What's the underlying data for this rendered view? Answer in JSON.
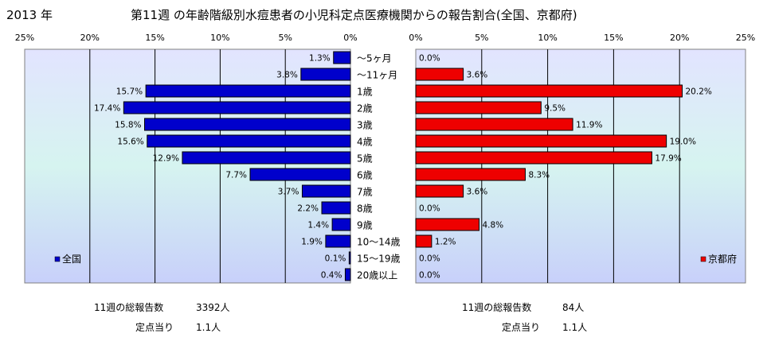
{
  "header": {
    "year": "2013 年",
    "title": "第11週 の年齢階級別水痘患者の小児科定点医療機関からの報告割合(全国、京都府)"
  },
  "chart_data": {
    "type": "bar",
    "orientation": "horizontal",
    "categories": [
      "～5ヶ月",
      "～11ヶ月",
      "1歳",
      "2歳",
      "3歳",
      "4歳",
      "5歳",
      "6歳",
      "7歳",
      "8歳",
      "9歳",
      "10～14歳",
      "15～19歳",
      "20歳以上"
    ],
    "xlim": [
      0,
      25
    ],
    "x_ticks": [
      "0%",
      "5%",
      "10%",
      "15%",
      "20%",
      "25%"
    ],
    "grid": "vertical",
    "series": [
      {
        "name": "全国",
        "color": "#0000cc",
        "side": "left",
        "legend_position": "bottom-left",
        "values": [
          1.3,
          3.8,
          15.7,
          17.4,
          15.8,
          15.6,
          12.9,
          7.7,
          3.7,
          2.2,
          1.4,
          1.9,
          0.1,
          0.4
        ],
        "labels": [
          "1.3%",
          "3.8%",
          "15.7%",
          "17.4%",
          "15.8%",
          "15.6%",
          "12.9%",
          "7.7%",
          "3.7%",
          "2.2%",
          "1.4%",
          "1.9%",
          "0.1%",
          "0.4%"
        ]
      },
      {
        "name": "京都府",
        "color": "#ee0000",
        "side": "right",
        "legend_position": "bottom-right",
        "values": [
          0.0,
          3.6,
          20.2,
          9.5,
          11.9,
          19.0,
          17.9,
          8.3,
          3.6,
          0.0,
          4.8,
          1.2,
          0.0,
          0.0
        ],
        "labels": [
          "0.0%",
          "3.6%",
          "20.2%",
          "9.5%",
          "11.9%",
          "19.0%",
          "17.9%",
          "8.3%",
          "3.6%",
          "0.0%",
          "4.8%",
          "1.2%",
          "0.0%",
          "0.0%"
        ]
      }
    ]
  },
  "footer": {
    "national": {
      "total_label": "11週の総報告数",
      "total_value": "3392人",
      "per_label": "定点当り",
      "per_value": "1.1人"
    },
    "kyoto": {
      "total_label": "11週の総報告数",
      "total_value": "84人",
      "per_label": "定点当り",
      "per_value": "1.1人"
    }
  }
}
